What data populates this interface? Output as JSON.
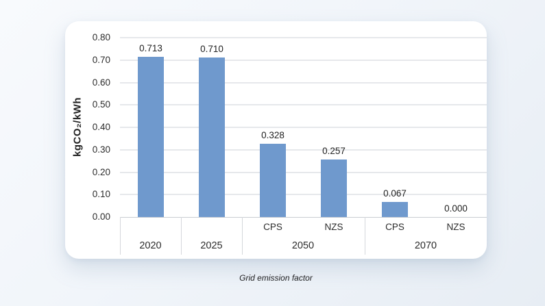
{
  "chart_data": {
    "type": "bar",
    "caption": "Grid emission factor",
    "ylabel": "kgCO₂/kWh",
    "ylim": [
      0,
      0.8
    ],
    "yticks": [
      "0.00",
      "0.10",
      "0.20",
      "0.30",
      "0.40",
      "0.50",
      "0.60",
      "0.70",
      "0.80"
    ],
    "grid": true,
    "legend_position": "none",
    "bar_color": "#6f99cd",
    "groups": [
      {
        "label": "2020",
        "bars": [
          {
            "scenario": "",
            "value": 0.713,
            "value_label": "0.713"
          }
        ]
      },
      {
        "label": "2025",
        "bars": [
          {
            "scenario": "",
            "value": 0.71,
            "value_label": "0.710"
          }
        ]
      },
      {
        "label": "2050",
        "bars": [
          {
            "scenario": "CPS",
            "value": 0.328,
            "value_label": "0.328"
          },
          {
            "scenario": "NZS",
            "value": 0.257,
            "value_label": "0.257"
          }
        ]
      },
      {
        "label": "2070",
        "bars": [
          {
            "scenario": "CPS",
            "value": 0.067,
            "value_label": "0.067"
          },
          {
            "scenario": "NZS",
            "value": 0.0,
            "value_label": "0.000"
          }
        ]
      }
    ]
  },
  "colors": {
    "bar": "#6f99cd",
    "card_background": "#ffffff",
    "page_background": "#eef3f9"
  }
}
